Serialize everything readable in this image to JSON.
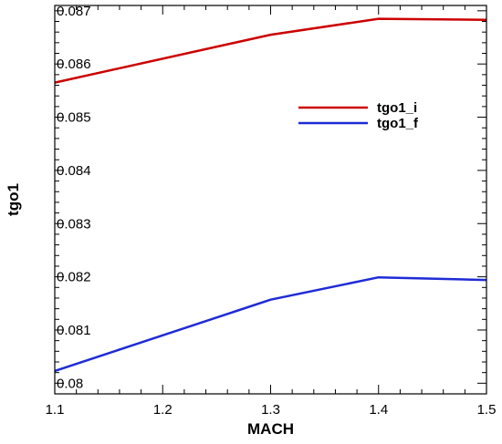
{
  "chart_data": {
    "type": "line",
    "title": "",
    "xlabel": "MACH",
    "ylabel": "tgo1",
    "xlim": [
      1.1,
      1.5
    ],
    "ylim": [
      0.0798,
      0.0871
    ],
    "x_ticks": [
      1.1,
      1.2,
      1.3,
      1.4,
      1.5
    ],
    "x_tick_labels": [
      "1.1",
      "1.2",
      "1.3",
      "1.4",
      "1.5"
    ],
    "y_ticks": [
      0.08,
      0.081,
      0.082,
      0.083,
      0.084,
      0.085,
      0.086,
      0.087
    ],
    "y_tick_labels": [
      "0.08",
      "0.081",
      "0.082",
      "0.083",
      "0.084",
      "0.085",
      "0.086",
      "0.087"
    ],
    "grid": false,
    "legend_position": "upper-right",
    "series": [
      {
        "name": "tgo1_i",
        "color": "#cc0000",
        "x": [
          1.1,
          1.3,
          1.4,
          1.5
        ],
        "y": [
          0.08565,
          0.08655,
          0.08685,
          0.08683
        ]
      },
      {
        "name": "tgo1_f",
        "color": "#1f2bd6",
        "x": [
          1.1,
          1.3,
          1.4,
          1.5
        ],
        "y": [
          0.08023,
          0.08157,
          0.08199,
          0.08194
        ]
      }
    ]
  }
}
